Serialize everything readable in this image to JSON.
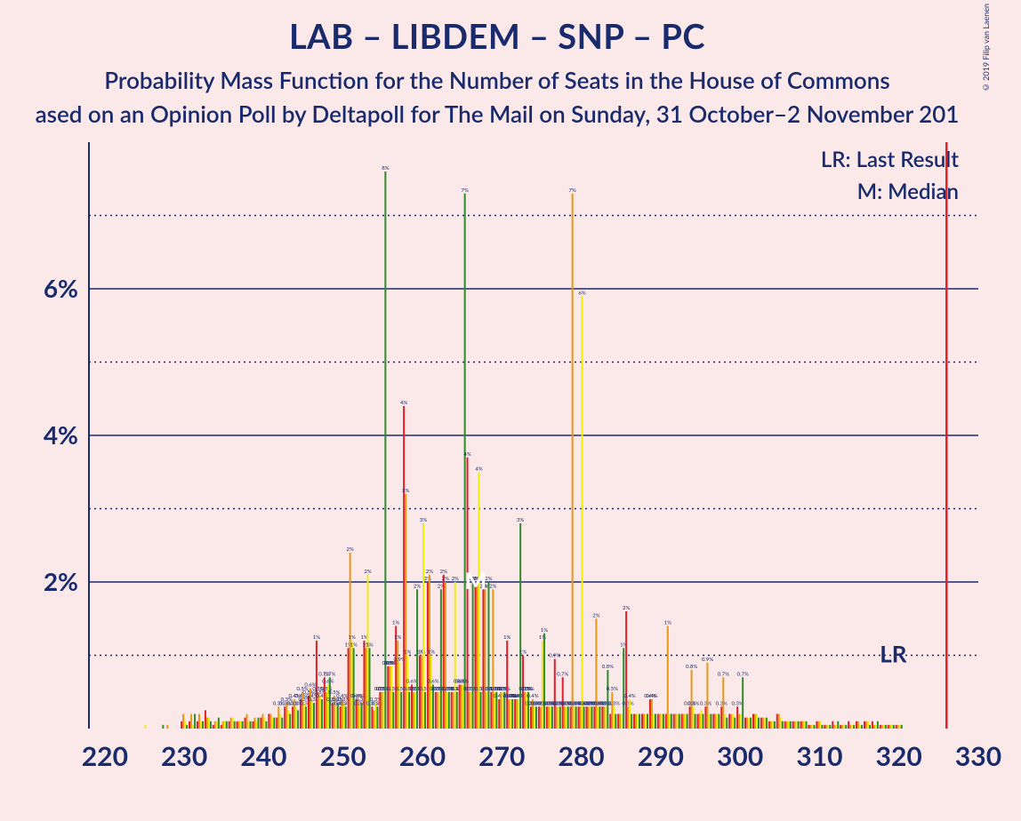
{
  "copyright": "© 2019 Filip van Laenen",
  "title": "LAB – LIBDEM – SNP – PC",
  "subtitle1": "Probability Mass Function for the Number of Seats in the House of Commons",
  "subtitle2": "ased on an Opinion Poll by Deltapoll for The Mail on Sunday, 31 October–2 November 201",
  "legend_lr": "LR: Last Result",
  "legend_m": "M: Median",
  "lr_short": "LR",
  "m_short": "M",
  "chart": {
    "type": "bar",
    "background_color": "#fbe8e9",
    "axis_color": "#1a2b6d",
    "text_color": "#1a2b6d",
    "grid_color": "#1a2b6d",
    "lr_line_color": "#e1202a",
    "m_label_color": "#ffffff",
    "series_colors": [
      "#e1202a",
      "#e69819",
      "#eded0e",
      "#2e8b2e"
    ],
    "xlim": [
      218,
      330
    ],
    "ylim": [
      0,
      8
    ],
    "yticks": [
      2,
      4,
      6
    ],
    "yminor": [
      1,
      3,
      5,
      7
    ],
    "xticks": [
      220,
      230,
      240,
      250,
      260,
      270,
      280,
      290,
      300,
      310,
      320,
      330
    ],
    "bar_group_width": 0.9,
    "lr_x": 326,
    "m_x": 266,
    "data": {
      "220": [
        0,
        0,
        0,
        0
      ],
      "221": [
        0,
        0,
        0,
        0
      ],
      "222": [
        0,
        0,
        0,
        0
      ],
      "223": [
        0,
        0,
        0,
        0
      ],
      "224": [
        0,
        0,
        0,
        0
      ],
      "225": [
        0,
        0,
        0.05,
        0
      ],
      "226": [
        0,
        0,
        0,
        0
      ],
      "227": [
        0,
        0,
        0,
        0.05
      ],
      "228": [
        0,
        0.05,
        0,
        0
      ],
      "229": [
        0,
        0,
        0,
        0
      ],
      "230": [
        0.1,
        0.2,
        0.1,
        0.05
      ],
      "231": [
        0.1,
        0.2,
        0.05,
        0.2
      ],
      "232": [
        0.1,
        0.2,
        0.1,
        0.1
      ],
      "233": [
        0.25,
        0.15,
        0.15,
        0.1
      ],
      "234": [
        0.05,
        0.1,
        0.1,
        0.15
      ],
      "235": [
        0.05,
        0.1,
        0.1,
        0.1
      ],
      "236": [
        0.1,
        0.15,
        0.15,
        0.1
      ],
      "237": [
        0.1,
        0.1,
        0.1,
        0.1
      ],
      "238": [
        0.15,
        0.2,
        0.1,
        0.1
      ],
      "239": [
        0.1,
        0.15,
        0.1,
        0.15
      ],
      "240": [
        0.15,
        0.2,
        0.15,
        0.1
      ],
      "241": [
        0.2,
        0.2,
        0.15,
        0.15
      ],
      "242": [
        0.15,
        0.3,
        0.2,
        0.15
      ],
      "243": [
        0.3,
        0.35,
        0.25,
        0.2
      ],
      "244": [
        0.3,
        0.4,
        0.3,
        0.25
      ],
      "245": [
        0.4,
        0.5,
        0.35,
        0.3
      ],
      "246": [
        0.45,
        0.55,
        0.4,
        0.35
      ],
      "247": [
        1.2,
        0.5,
        0.45,
        0.4
      ],
      "248": [
        0.7,
        0.5,
        0.6,
        0.7
      ],
      "249": [
        0.35,
        0.45,
        0.3,
        0.35
      ],
      "250": [
        0.3,
        0.4,
        0.35,
        0.3
      ],
      "251": [
        1.1,
        2.4,
        1.2,
        1.1
      ],
      "252": [
        0.4,
        0.4,
        0.3,
        0.35
      ],
      "253": [
        1.2,
        1.1,
        2.1,
        1.1
      ],
      "254": [
        0.3,
        0.25,
        0.35,
        0.3
      ],
      "255": [
        0.5,
        0.5,
        0.5,
        7.6
      ],
      "256": [
        0.85,
        0.85,
        0.85,
        0.5
      ],
      "257": [
        1.4,
        1.2,
        0.9,
        0.5
      ],
      "258": [
        4.4,
        3.2,
        1.0,
        0.5
      ],
      "259": [
        0.6,
        0.5,
        0.5,
        1.9
      ],
      "260": [
        1.0,
        1.0,
        2.8,
        0.5
      ],
      "261": [
        2.0,
        2.1,
        1.0,
        0.6
      ],
      "262": [
        0.5,
        0.5,
        0.5,
        1.9
      ],
      "263": [
        2.1,
        2.0,
        0.5,
        0.5
      ],
      "264": [
        0.5,
        0.5,
        2.0,
        0.5
      ],
      "265": [
        0.6,
        0.6,
        0.6,
        7.3
      ],
      "266": [
        3.7,
        0.5,
        0.5,
        2.0
      ],
      "267": [
        2.0,
        2.0,
        3.5,
        0.5
      ],
      "268": [
        1.9,
        1.9,
        0.5,
        2.0
      ],
      "269": [
        0.5,
        1.9,
        0.5,
        0.5
      ],
      "270": [
        0.4,
        0.5,
        0.5,
        0.5
      ],
      "271": [
        1.2,
        0.4,
        0.4,
        0.4
      ],
      "272": [
        0.4,
        0.4,
        0.4,
        2.8
      ],
      "273": [
        1.0,
        0.5,
        0.5,
        0.5
      ],
      "274": [
        0.3,
        0.4,
        0.3,
        0.3
      ],
      "275": [
        0.3,
        0.3,
        1.2,
        1.3
      ],
      "276": [
        0.3,
        0.3,
        0.3,
        0.3
      ],
      "277": [
        0.95,
        0.3,
        0.3,
        0.3
      ],
      "278": [
        0.7,
        0.3,
        0.3,
        0.3
      ],
      "279": [
        0.3,
        7.3,
        0.3,
        0.3
      ],
      "280": [
        0.3,
        0.3,
        5.9,
        0.3
      ],
      "281": [
        0.3,
        0.3,
        0.3,
        0.3
      ],
      "282": [
        0.3,
        1.5,
        0.3,
        0.3
      ],
      "283": [
        0.3,
        0.3,
        0.3,
        0.8
      ],
      "284": [
        0.2,
        0.5,
        0.3,
        0.2
      ],
      "285": [
        0.2,
        0.2,
        0.2,
        1.1
      ],
      "286": [
        1.6,
        0.3,
        0.4,
        0.2
      ],
      "287": [
        0.2,
        0.2,
        0.2,
        0.2
      ],
      "288": [
        0.2,
        0.2,
        0.2,
        0.2
      ],
      "289": [
        0.4,
        0.4,
        0.2,
        0.2
      ],
      "290": [
        0.2,
        0.2,
        0.2,
        0.2
      ],
      "291": [
        0.2,
        1.4,
        0.2,
        0.2
      ],
      "292": [
        0.2,
        0.2,
        0.2,
        0.2
      ],
      "293": [
        0.2,
        0.2,
        0.2,
        0.2
      ],
      "294": [
        0.3,
        0.8,
        0.3,
        0.2
      ],
      "295": [
        0.2,
        0.2,
        0.25,
        0.2
      ],
      "296": [
        0.3,
        0.9,
        0.2,
        0.2
      ],
      "297": [
        0.2,
        0.2,
        0.2,
        0.2
      ],
      "298": [
        0.3,
        0.7,
        0.2,
        0.15
      ],
      "299": [
        0.2,
        0.2,
        0.2,
        0.15
      ],
      "300": [
        0.3,
        0.2,
        0.2,
        0.7
      ],
      "301": [
        0.15,
        0.15,
        0.15,
        0.15
      ],
      "302": [
        0.2,
        0.2,
        0.2,
        0.15
      ],
      "303": [
        0.15,
        0.15,
        0.15,
        0.15
      ],
      "304": [
        0.1,
        0.1,
        0.1,
        0.1
      ],
      "305": [
        0.2,
        0.2,
        0.15,
        0.1
      ],
      "306": [
        0.1,
        0.1,
        0.1,
        0.1
      ],
      "307": [
        0.1,
        0.1,
        0.1,
        0.1
      ],
      "308": [
        0.1,
        0.1,
        0.1,
        0.1
      ],
      "309": [
        0.05,
        0.05,
        0.05,
        0.05
      ],
      "310": [
        0.1,
        0.1,
        0.1,
        0.05
      ],
      "311": [
        0.05,
        0.05,
        0.05,
        0.05
      ],
      "312": [
        0.1,
        0.05,
        0.05,
        0.1
      ],
      "313": [
        0.05,
        0.05,
        0.05,
        0.05
      ],
      "314": [
        0.1,
        0.05,
        0.05,
        0.05
      ],
      "315": [
        0.1,
        0.1,
        0.05,
        0.05
      ],
      "316": [
        0.1,
        0.1,
        0.1,
        0.05
      ],
      "317": [
        0.1,
        0.05,
        0.05,
        0.1
      ],
      "318": [
        0.05,
        0.05,
        0.05,
        0.05
      ],
      "319": [
        0.05,
        0.05,
        0.05,
        0.05
      ],
      "320": [
        0.05,
        0.05,
        0.05,
        0.05
      ],
      "321": [
        0,
        0,
        0,
        0
      ],
      "322": [
        0,
        0,
        0,
        0
      ],
      "323": [
        0,
        0,
        0,
        0
      ],
      "324": [
        0,
        0,
        0,
        0
      ],
      "325": [
        0,
        0,
        0,
        0
      ],
      "326": [
        0,
        0,
        0,
        0
      ],
      "327": [
        0,
        0,
        0,
        0
      ],
      "328": [
        0,
        0,
        0,
        0
      ],
      "329": [
        0,
        0,
        0,
        0
      ],
      "330": [
        0,
        0,
        0,
        0
      ]
    }
  }
}
